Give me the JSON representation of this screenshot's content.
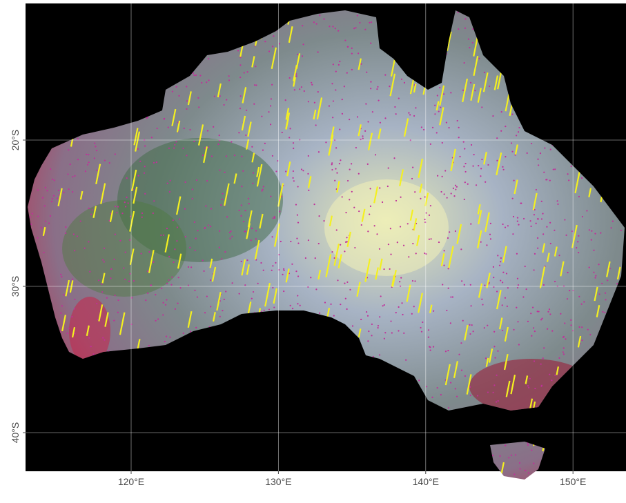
{
  "map": {
    "xlim": [
      112.83,
      153.6
    ],
    "ylim": [
      -42.64,
      -10.66
    ],
    "xticks": [
      {
        "value": 120,
        "label": "120°E"
      },
      {
        "value": 130,
        "label": "130°E"
      },
      {
        "value": 140,
        "label": "140°E"
      },
      {
        "value": 150,
        "label": "150°E"
      }
    ],
    "yticks": [
      {
        "value": -20,
        "label": "20°S"
      },
      {
        "value": -30,
        "label": "30°S"
      },
      {
        "value": -40,
        "label": "40°S"
      }
    ]
  }
}
